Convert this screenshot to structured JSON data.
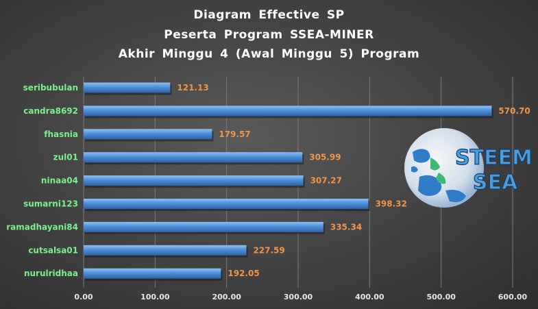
{
  "chart_data": {
    "type": "bar",
    "orientation": "horizontal",
    "title_lines": [
      "Diagram Effective SP",
      "Peserta Program SSEA-MINER",
      "Akhir Minggu 4 (Awal Minggu 5) Program"
    ],
    "categories": [
      "seribubulan",
      "candra8692",
      "fhasnia",
      "zul01",
      "ninaa04",
      "sumarni123",
      "ramadhayani84",
      "cutsalsa01",
      "nurulridhaa"
    ],
    "values": [
      121.13,
      570.7,
      179.57,
      305.99,
      307.27,
      398.32,
      335.34,
      227.59,
      192.05
    ],
    "value_labels": [
      "121.13",
      "570.70",
      "179.57",
      "305.99",
      "307.27",
      "398.32",
      "335.34",
      "227.59",
      "192.05"
    ],
    "xlim": [
      0,
      600
    ],
    "x_ticks": [
      0,
      100,
      200,
      300,
      400,
      500,
      600
    ],
    "x_tick_labels": [
      "0.00",
      "100.00",
      "200.00",
      "300.00",
      "400.00",
      "500.00",
      "600.00"
    ],
    "grid": "vertical",
    "bar_color": "#4f8fd8",
    "category_label_color": "#7cf08c",
    "value_label_color": "#f0954a"
  },
  "logo": {
    "line1": "STEEM",
    "line2": "SEA"
  }
}
